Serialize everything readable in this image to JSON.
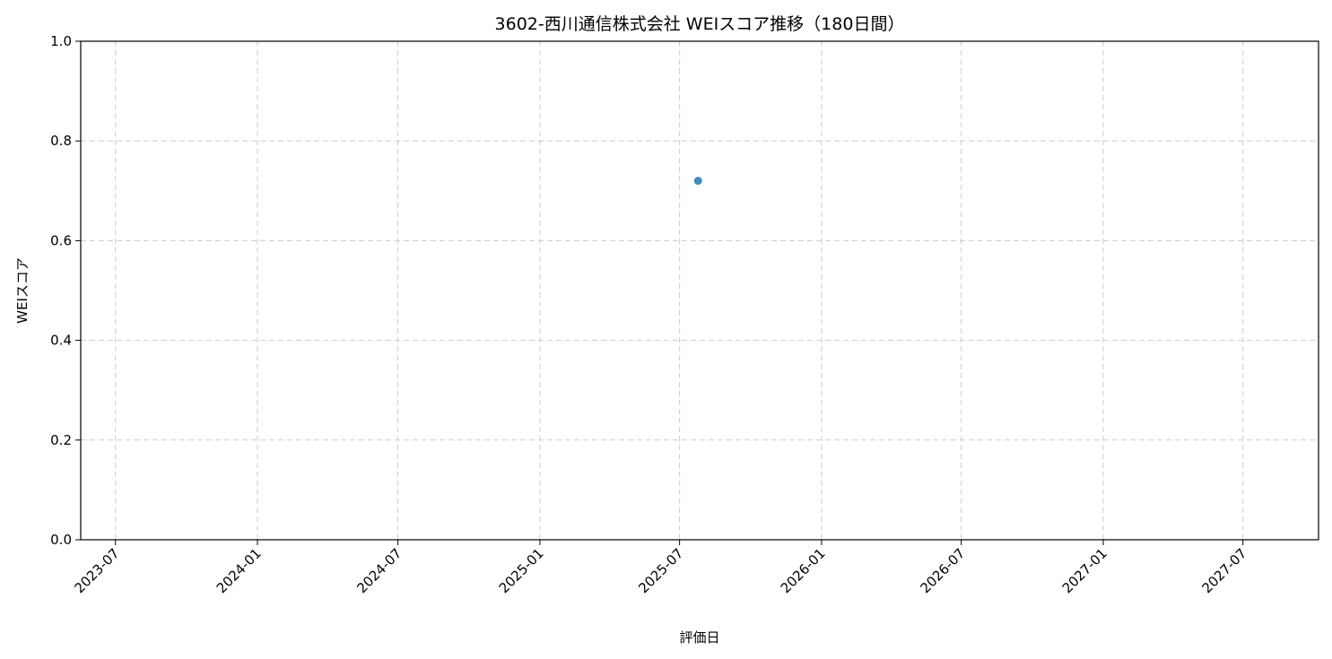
{
  "chart_data": {
    "type": "scatter",
    "title": "3602-西川通信株式会社 WEIスコア推移（180日間）",
    "xlabel": "評価日",
    "ylabel": "WEIスコア",
    "xlim": [
      "2023-05-17",
      "2027-10-07"
    ],
    "ylim": [
      0,
      1.0
    ],
    "x_ticks": [
      "2023-07",
      "2024-01",
      "2024-07",
      "2025-01",
      "2025-07",
      "2026-01",
      "2026-07",
      "2027-01",
      "2027-07"
    ],
    "y_ticks": [
      "0.0",
      "0.2",
      "0.4",
      "0.6",
      "0.8",
      "1.0"
    ],
    "grid": true,
    "points": [
      {
        "x": "2025-07-25",
        "y": 0.72
      }
    ],
    "colors": {
      "point": "#1f77b4",
      "grid": "#cccccc"
    }
  }
}
